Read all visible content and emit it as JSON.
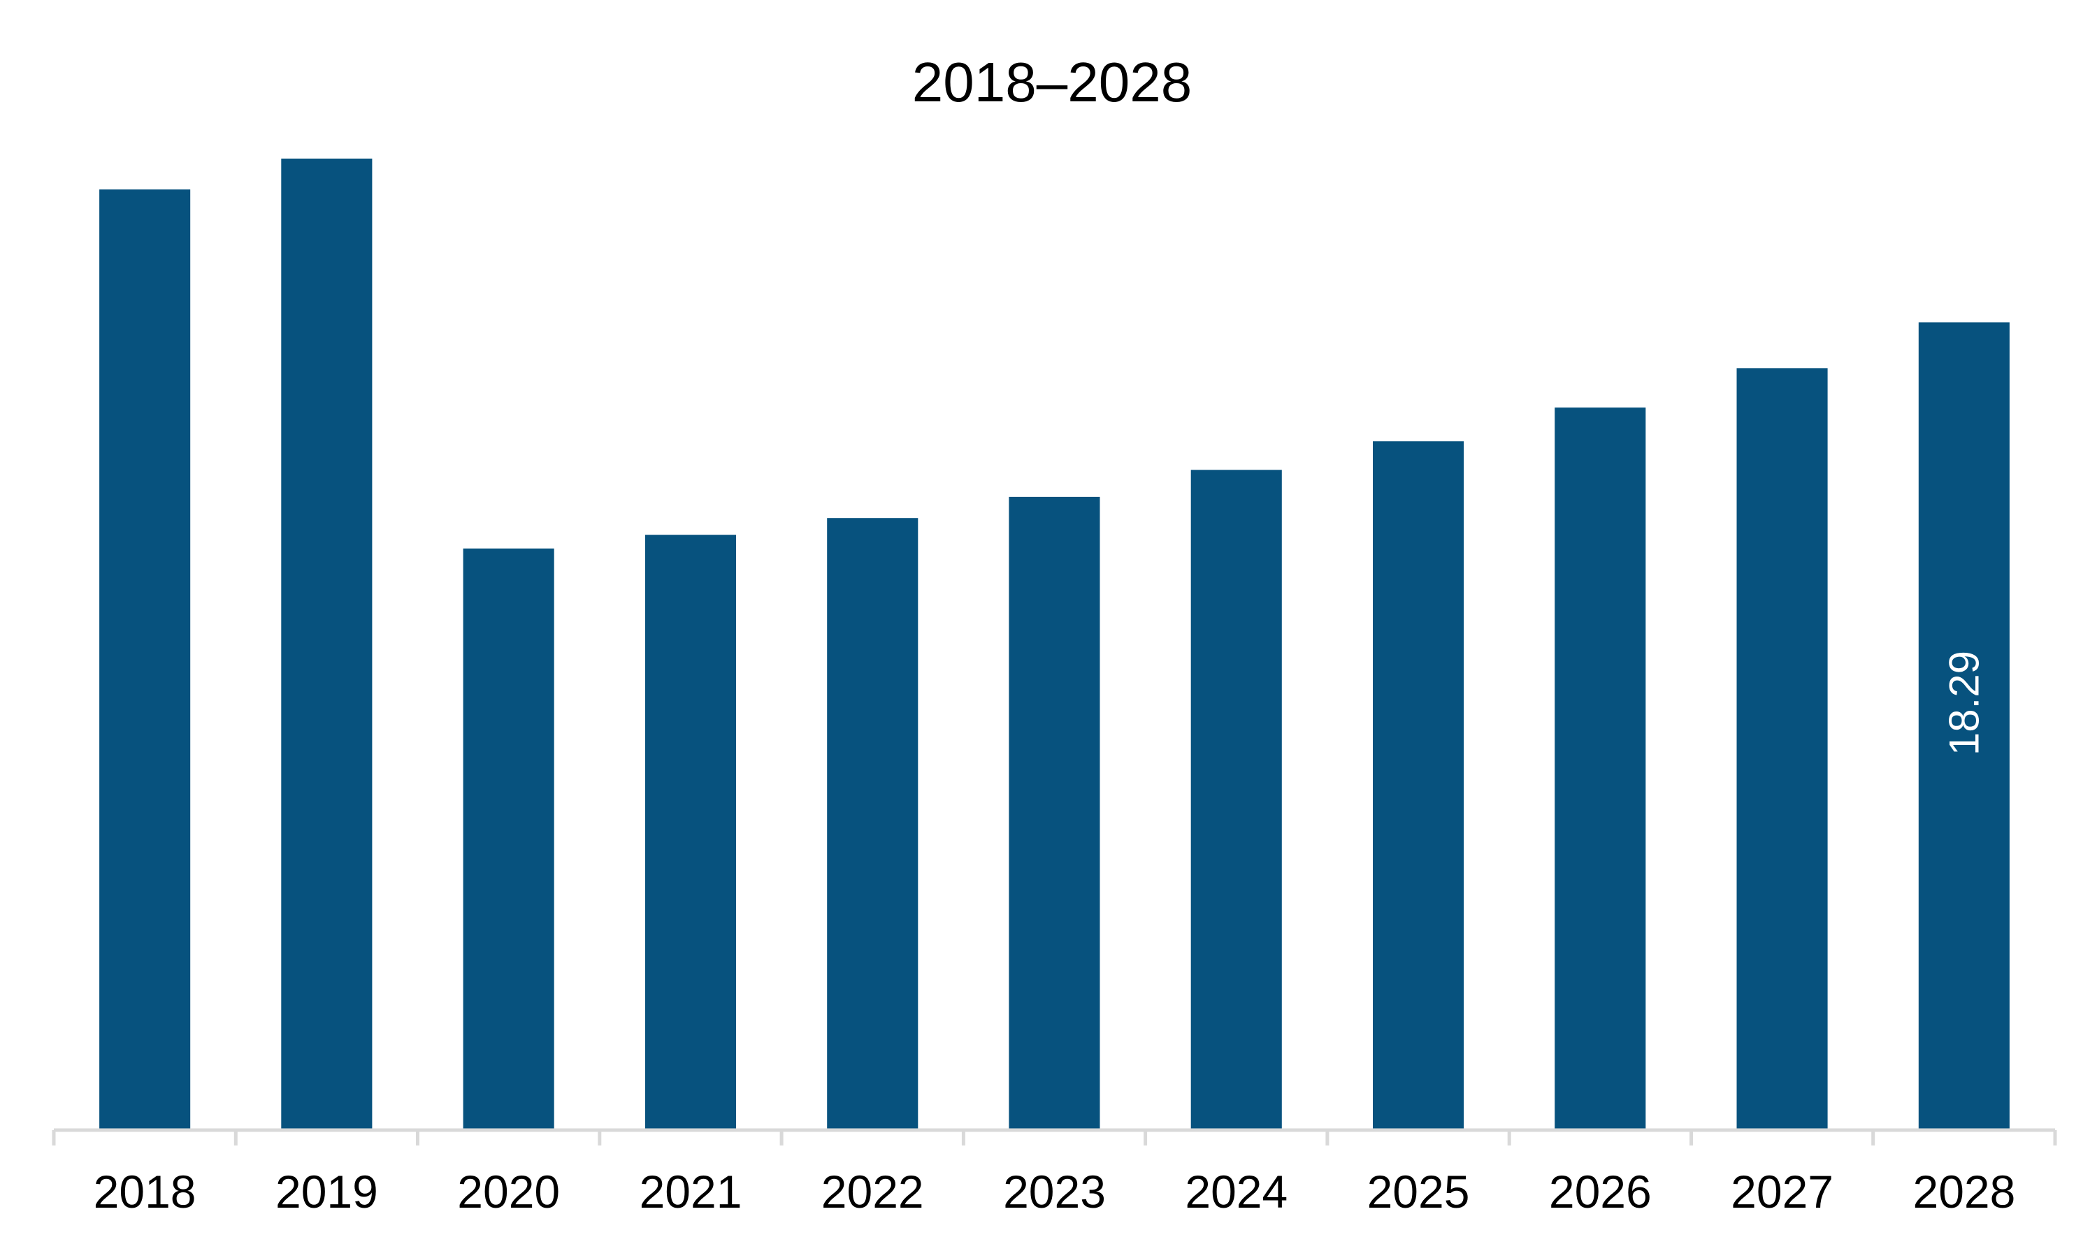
{
  "chart_data": {
    "type": "bar",
    "title": "2018–2028",
    "xlabel": "",
    "ylabel": "",
    "categories": [
      "2018",
      "2019",
      "2020",
      "2021",
      "2022",
      "2023",
      "2024",
      "2025",
      "2026",
      "2027",
      "2028"
    ],
    "values": [
      21.3,
      22.0,
      13.17,
      13.48,
      13.86,
      14.34,
      14.95,
      15.6,
      16.36,
      17.25,
      18.29
    ],
    "ylim": [
      0,
      22.9
    ],
    "grid": false,
    "legend": "none",
    "data_labels": [
      {
        "category": "2028",
        "text": "18.29"
      }
    ],
    "bar_color": "#07527e",
    "axis_color": "#d9d9d9"
  }
}
